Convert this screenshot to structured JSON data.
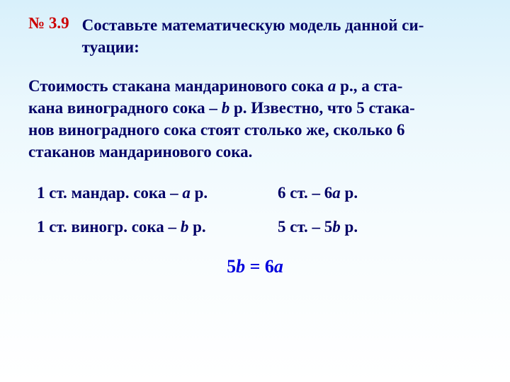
{
  "colors": {
    "red": "#cc0000",
    "darkblue": "#000066",
    "blue": "#0000dd",
    "bg_top": "#d8f0fb",
    "bg_bottom": "#ffffff"
  },
  "typography": {
    "body_fontsize": 23,
    "equation_fontsize": 26,
    "font_family": "Georgia, Times New Roman, serif",
    "weight": "bold"
  },
  "number": "№ 3.9",
  "task_line1": "Составьте математическую модель данной си-",
  "task_line2": "туации:",
  "problem": {
    "l1_a": "Стоимость стакана мандаринового сока ",
    "l1_var": "а",
    "l1_b": " р., а ста-",
    "l2_a": "кана виноградного сока – ",
    "l2_var": "b",
    "l2_b": " р. Известно, что 5 стака-",
    "l3": "нов виноградного сока стоят столько же, сколько 6",
    "l4": "стаканов мандаринового сока."
  },
  "work": {
    "r1_left_a": "1 ст. мандар. сока – ",
    "r1_left_var": "а",
    "r1_left_b": " р.",
    "r1_right_a": "6 ст. –  6",
    "r1_right_var": "а",
    "r1_right_b": " р.",
    "r2_left_a": "1 ст. виногр. сока – ",
    "r2_left_var": "b",
    "r2_left_b": " р.",
    "r2_right_a": "5 ст. –  5",
    "r2_right_var": "b",
    "r2_right_b": " р."
  },
  "equation": {
    "a": "5",
    "v1": "b",
    "b": " = 6",
    "v2": "a"
  }
}
